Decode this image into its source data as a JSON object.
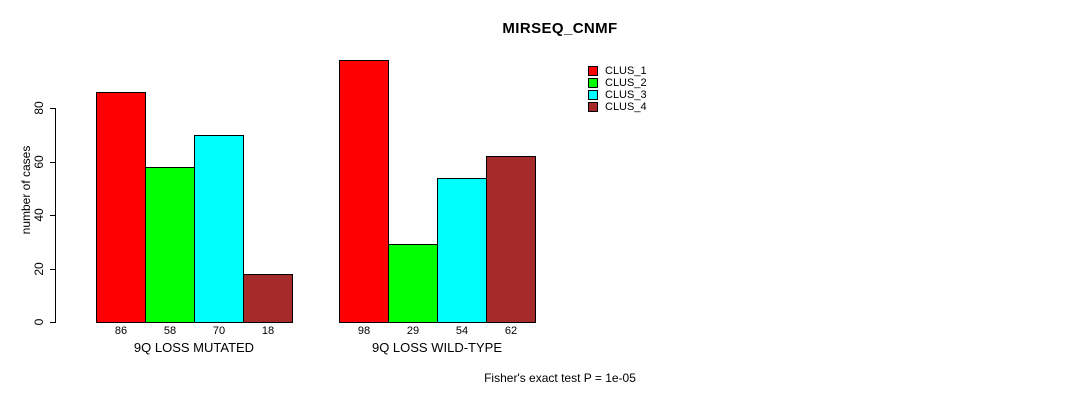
{
  "chart_data": {
    "type": "bar",
    "title": "MIRSEQ_CNMF",
    "ylabel": "number of cases",
    "xlabel": "",
    "yticks": [
      0,
      20,
      40,
      60,
      80
    ],
    "ylim": [
      0,
      98
    ],
    "grid": false,
    "legend_position": "right",
    "legend": [
      {
        "label": "CLUS_1",
        "color": "#FF0000"
      },
      {
        "label": "CLUS_2",
        "color": "#00FF00"
      },
      {
        "label": "CLUS_3",
        "color": "#00FFFF"
      },
      {
        "label": "CLUS_4",
        "color": "#A52A2A"
      }
    ],
    "categories": [
      "9Q LOSS MUTATED",
      "9Q LOSS WILD-TYPE"
    ],
    "series": [
      {
        "name": "CLUS_1",
        "values": [
          86,
          98
        ]
      },
      {
        "name": "CLUS_2",
        "values": [
          58,
          29
        ]
      },
      {
        "name": "CLUS_3",
        "values": [
          70,
          54
        ]
      },
      {
        "name": "CLUS_4",
        "values": [
          18,
          62
        ]
      }
    ],
    "groups": [
      {
        "label": "9Q LOSS MUTATED",
        "values": [
          86,
          58,
          70,
          18
        ]
      },
      {
        "label": "9Q LOSS WILD-TYPE",
        "values": [
          98,
          29,
          54,
          62
        ]
      }
    ],
    "bar_value_labels_shown": true,
    "footnote": "Fisher's exact test P = 1e-05"
  }
}
